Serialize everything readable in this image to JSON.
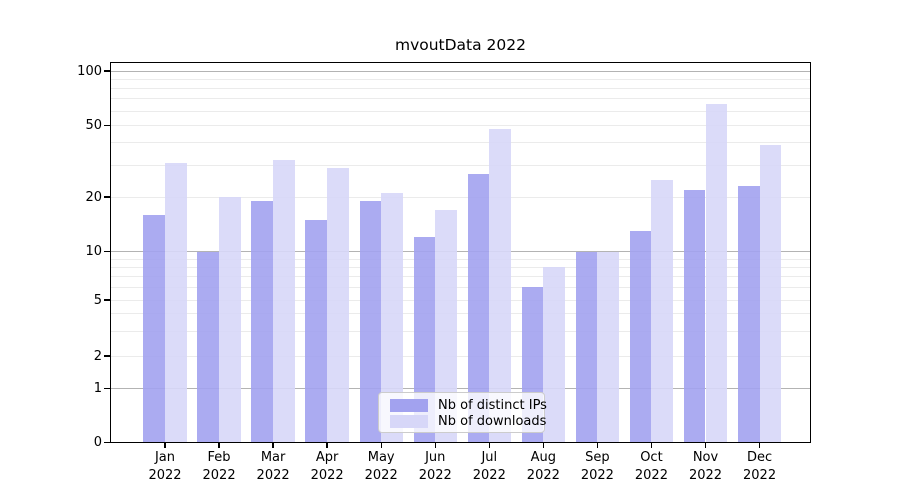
{
  "title": "mvoutData 2022",
  "chart_data": {
    "type": "bar",
    "title": "mvoutData 2022",
    "categories": [
      "Jan 2022",
      "Feb 2022",
      "Mar 2022",
      "Apr 2022",
      "May 2022",
      "Jun 2022",
      "Jul 2022",
      "Aug 2022",
      "Sep 2022",
      "Oct 2022",
      "Nov 2022",
      "Dec 2022"
    ],
    "months": [
      "Jan",
      "Feb",
      "Mar",
      "Apr",
      "May",
      "Jun",
      "Jul",
      "Aug",
      "Sep",
      "Oct",
      "Nov",
      "Dec"
    ],
    "year": "2022",
    "series": [
      {
        "name": "Nb of distinct IPs",
        "color": "#a2a2ef",
        "values": [
          16,
          10,
          19,
          15,
          19,
          12,
          27,
          6,
          10,
          13,
          22,
          23
        ]
      },
      {
        "name": "Nb of downloads",
        "color": "#d7d7f8",
        "values": [
          31,
          20,
          32,
          29,
          21,
          17,
          48,
          8,
          10,
          25,
          66,
          39
        ]
      }
    ],
    "y_axis": {
      "scale": "log-with-zero",
      "ticks": [
        0,
        1,
        2,
        5,
        10,
        20,
        50,
        100
      ],
      "tick_labels": [
        "0",
        "1",
        "2",
        "5",
        "10",
        "20",
        "50",
        "100"
      ],
      "range": [
        0,
        112
      ]
    },
    "x_axis": {
      "label_lines": 2
    },
    "grid": {
      "on": true,
      "major_values": [
        1,
        10,
        100
      ],
      "minor_multiples": [
        2,
        3,
        4,
        5,
        6,
        7,
        8,
        9
      ]
    },
    "legend": {
      "position": "bottom-center",
      "entries": [
        "Nb of distinct IPs",
        "Nb of downloads"
      ]
    }
  },
  "colors": {
    "bar_distinct_ips": "#a2a2ef",
    "bar_downloads": "#d7d7f8",
    "grid_major": "#b3b3b3",
    "grid_minor": "#ebebeb",
    "axis": "#000000",
    "legend_border": "#cccccc"
  }
}
